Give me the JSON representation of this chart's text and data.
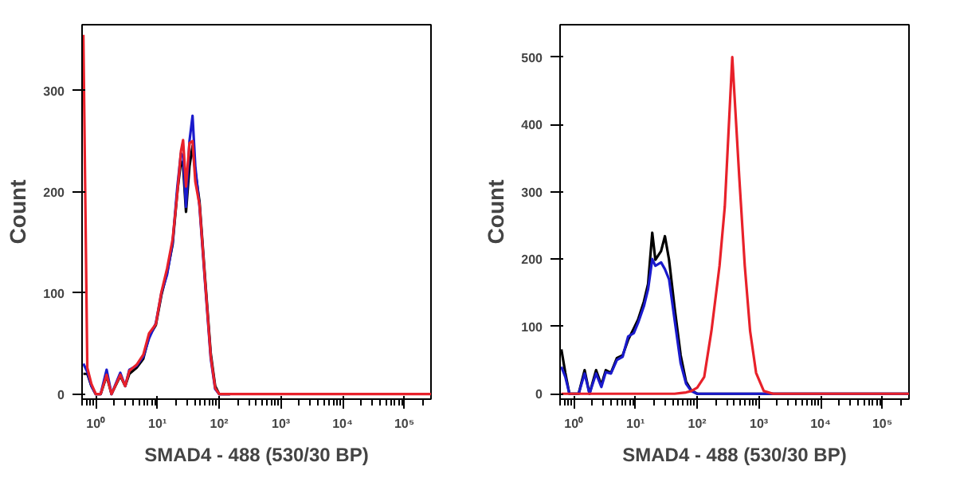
{
  "chart_data": [
    {
      "type": "line",
      "xlabel": "SMAD4 - 488 (530/30 BP)",
      "ylabel": "Count",
      "log": "x",
      "grid": false,
      "x": [
        0.63,
        0.73,
        0.85,
        1.0,
        1.2,
        1.5,
        1.8,
        2.5,
        3.0,
        3.5,
        4.6,
        5.9,
        7.3,
        9.4,
        11.6,
        14.3,
        17.6,
        21,
        24,
        26,
        29,
        33,
        37,
        41,
        48,
        59,
        73,
        86,
        100,
        150,
        1000,
        10000,
        270000
      ],
      "xlim": [
        0.6,
        270000
      ],
      "ylim": [
        -5,
        365
      ],
      "xticks": [
        {
          "value": 1,
          "label": "10⁰"
        },
        {
          "value": 10,
          "label": "10¹"
        },
        {
          "value": 100,
          "label": "10²"
        },
        {
          "value": 1000,
          "label": "10³"
        },
        {
          "value": 10000,
          "label": "10⁴"
        },
        {
          "value": 100000,
          "label": "10⁵"
        }
      ],
      "yticks": [
        0,
        100,
        200,
        300
      ],
      "series": [
        {
          "color": "#000000",
          "values": [
            20,
            20,
            8,
            0,
            0,
            18,
            0,
            18,
            8,
            20,
            26,
            35,
            57,
            68,
            98,
            120,
            148,
            200,
            230,
            225,
            180,
            225,
            245,
            220,
            190,
            115,
            40,
            8,
            0,
            0,
            null,
            null,
            null
          ]
        },
        {
          "color": "#1a1acc",
          "values": [
            30,
            22,
            8,
            0,
            0,
            24,
            0,
            21,
            8,
            24,
            28,
            37,
            55,
            70,
            100,
            118,
            150,
            205,
            238,
            235,
            185,
            250,
            275,
            225,
            185,
            110,
            35,
            5,
            0,
            0,
            null,
            null,
            null
          ]
        },
        {
          "color": "#e8212a",
          "values": [
            355,
            26,
            10,
            0,
            0,
            19,
            0,
            19,
            8,
            23,
            29,
            39,
            60,
            69,
            101,
            124,
            153,
            199,
            240,
            251,
            205,
            248,
            250,
            210,
            187,
            112,
            37,
            6,
            0,
            0,
            0,
            0,
            0
          ]
        }
      ]
    },
    {
      "type": "line",
      "xlabel": "SMAD4 - 488 (530/30 BP)",
      "ylabel": "Count",
      "log": "x",
      "grid": false,
      "x": [
        0.63,
        0.73,
        0.85,
        1.0,
        1.2,
        1.5,
        1.8,
        2.3,
        2.8,
        3.3,
        4,
        5,
        6.2,
        7.6,
        9.4,
        11,
        13.7,
        16,
        18.7,
        21,
        26,
        30,
        35,
        43,
        54,
        66,
        80,
        100,
        130,
        170,
        230,
        280,
        370,
        480,
        590,
        720,
        900,
        1200,
        1700,
        10000,
        270000
      ],
      "xlim": [
        0.6,
        270000
      ],
      "ylim": [
        -8,
        548
      ],
      "xticks": [
        {
          "value": 1,
          "label": "10⁰"
        },
        {
          "value": 10,
          "label": "10¹"
        },
        {
          "value": 100,
          "label": "10²"
        },
        {
          "value": 1000,
          "label": "10³"
        },
        {
          "value": 10000,
          "label": "10⁴"
        },
        {
          "value": 100000,
          "label": "10⁵"
        }
      ],
      "yticks": [
        0,
        100,
        200,
        300,
        400,
        500
      ],
      "series": [
        {
          "color": "#000000",
          "values": [
            66,
            31,
            0,
            0,
            0,
            35,
            0,
            35,
            13,
            35,
            31,
            53,
            57,
            80,
            97,
            110,
            137,
            163,
            239,
            199,
            212,
            234,
            199,
            128,
            57,
            18,
            5,
            0,
            0,
            0,
            0,
            0,
            0,
            0,
            0,
            0,
            0,
            0,
            0,
            0,
            0
          ]
        },
        {
          "color": "#1a1acc",
          "values": [
            40,
            25,
            0,
            0,
            0,
            30,
            0,
            30,
            10,
            32,
            30,
            50,
            55,
            85,
            90,
            105,
            130,
            155,
            200,
            190,
            195,
            185,
            170,
            110,
            45,
            15,
            4,
            0,
            0,
            0,
            0,
            0,
            0,
            0,
            0,
            0,
            0,
            0,
            0,
            0,
            0
          ]
        },
        {
          "color": "#e8212a",
          "values": [
            0,
            0,
            0,
            0,
            0,
            0,
            0,
            0,
            0,
            0,
            0,
            0,
            0,
            0,
            0,
            0,
            0,
            0,
            0,
            0,
            0,
            0,
            0,
            0,
            1,
            2,
            4,
            9,
            25,
            93,
            190,
            278,
            500,
            322,
            190,
            93,
            31,
            4,
            0,
            0,
            0
          ]
        }
      ]
    }
  ]
}
